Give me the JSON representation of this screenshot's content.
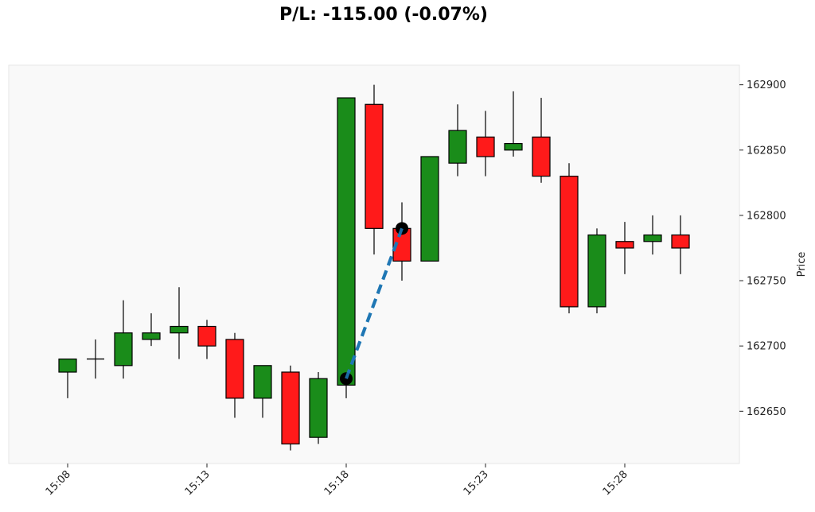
{
  "title": "P/L: -115.00 (-0.07%)",
  "chart_data": {
    "type": "candlestick",
    "ylabel": "Price",
    "ylim": [
      162610,
      162915
    ],
    "yticks": [
      162650,
      162700,
      162750,
      162800,
      162850,
      162900
    ],
    "xtick_labels": [
      "15:08",
      "15:13",
      "15:18",
      "15:23",
      "15:28"
    ],
    "xtick_indices": [
      0,
      5,
      10,
      15,
      20
    ],
    "grid": false,
    "colors": {
      "up": "#1a8c1a",
      "down": "#ff1a1a",
      "trade_line": "#1f77b4",
      "marker": "#000000",
      "plot_bg": "#f9f9f9"
    },
    "candles": [
      {
        "time": "15:08",
        "open": 162680,
        "high": 162690,
        "low": 162660,
        "close": 162690
      },
      {
        "time": "15:09",
        "open": 162690,
        "high": 162705,
        "low": 162675,
        "close": 162690
      },
      {
        "time": "15:10",
        "open": 162685,
        "high": 162735,
        "low": 162675,
        "close": 162710
      },
      {
        "time": "15:11",
        "open": 162705,
        "high": 162725,
        "low": 162700,
        "close": 162710
      },
      {
        "time": "15:12",
        "open": 162710,
        "high": 162745,
        "low": 162690,
        "close": 162715
      },
      {
        "time": "15:13",
        "open": 162715,
        "high": 162720,
        "low": 162690,
        "close": 162700
      },
      {
        "time": "15:14",
        "open": 162705,
        "high": 162710,
        "low": 162645,
        "close": 162660
      },
      {
        "time": "15:15",
        "open": 162660,
        "high": 162685,
        "low": 162645,
        "close": 162685
      },
      {
        "time": "15:16",
        "open": 162680,
        "high": 162685,
        "low": 162620,
        "close": 162625
      },
      {
        "time": "15:17",
        "open": 162630,
        "high": 162680,
        "low": 162625,
        "close": 162675
      },
      {
        "time": "15:18",
        "open": 162670,
        "high": 162890,
        "low": 162660,
        "close": 162890
      },
      {
        "time": "15:19",
        "open": 162885,
        "high": 162900,
        "low": 162770,
        "close": 162790
      },
      {
        "time": "15:20",
        "open": 162790,
        "high": 162810,
        "low": 162750,
        "close": 162765
      },
      {
        "time": "15:21",
        "open": 162765,
        "high": 162845,
        "low": 162765,
        "close": 162845
      },
      {
        "time": "15:22",
        "open": 162840,
        "high": 162885,
        "low": 162830,
        "close": 162865
      },
      {
        "time": "15:23",
        "open": 162860,
        "high": 162880,
        "low": 162830,
        "close": 162845
      },
      {
        "time": "15:24",
        "open": 162850,
        "high": 162895,
        "low": 162845,
        "close": 162855
      },
      {
        "time": "15:25",
        "open": 162860,
        "high": 162890,
        "low": 162825,
        "close": 162830
      },
      {
        "time": "15:26",
        "open": 162830,
        "high": 162840,
        "low": 162725,
        "close": 162730
      },
      {
        "time": "15:27",
        "open": 162730,
        "high": 162790,
        "low": 162725,
        "close": 162785
      },
      {
        "time": "15:28",
        "open": 162780,
        "high": 162795,
        "low": 162755,
        "close": 162775
      },
      {
        "time": "15:29",
        "open": 162780,
        "high": 162800,
        "low": 162770,
        "close": 162785
      },
      {
        "time": "15:30",
        "open": 162785,
        "high": 162800,
        "low": 162755,
        "close": 162775
      }
    ],
    "trade": {
      "entry": {
        "index": 10,
        "price": 162675
      },
      "exit": {
        "index": 12,
        "price": 162790
      }
    }
  }
}
